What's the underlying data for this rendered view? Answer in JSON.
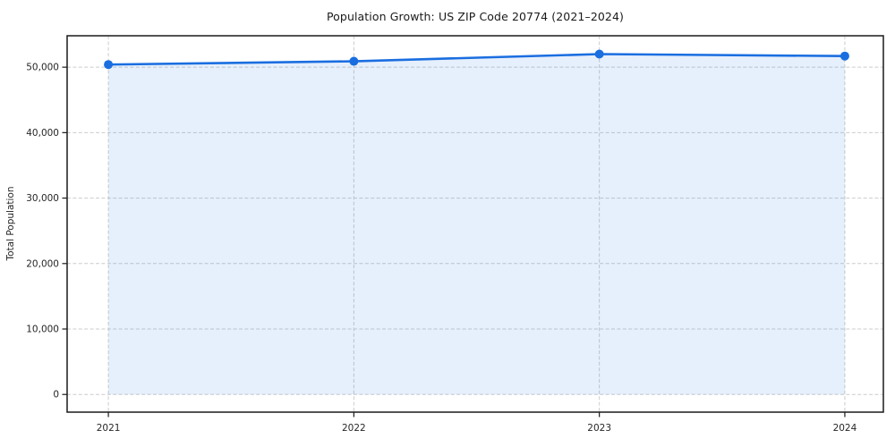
{
  "figure": {
    "background": "#ffffff"
  },
  "chart_data": {
    "type": "line",
    "title": "Population Growth: US ZIP Code 20774 (2021–2024)",
    "xlabel": "",
    "ylabel": "Total Population",
    "x": [
      2021,
      2022,
      2023,
      2024
    ],
    "x_tick_labels": [
      "2021",
      "2022",
      "2023",
      "2024"
    ],
    "series": [
      {
        "name": "Total Population",
        "values": [
          50400,
          50900,
          52000,
          51700
        ]
      }
    ],
    "y_ticks": [
      0,
      10000,
      20000,
      30000,
      40000,
      50000
    ],
    "y_tick_labels": [
      "0",
      "10,000",
      "20,000",
      "30,000",
      "40,000",
      "50,000"
    ],
    "xlim": [
      2020.832,
      2024.157
    ],
    "ylim": [
      -2700,
      54800
    ],
    "grid": true,
    "grid_style": "dashed",
    "legend": "none",
    "marker": "circle",
    "fill_to_zero": true,
    "colors": {
      "line": "#1a6ee0",
      "marker": "#1a6ee0",
      "fill": "rgba(26,110,224,0.11)",
      "grid": "#cccccc",
      "spine": "#1a1a1a",
      "text": "#262626"
    }
  }
}
